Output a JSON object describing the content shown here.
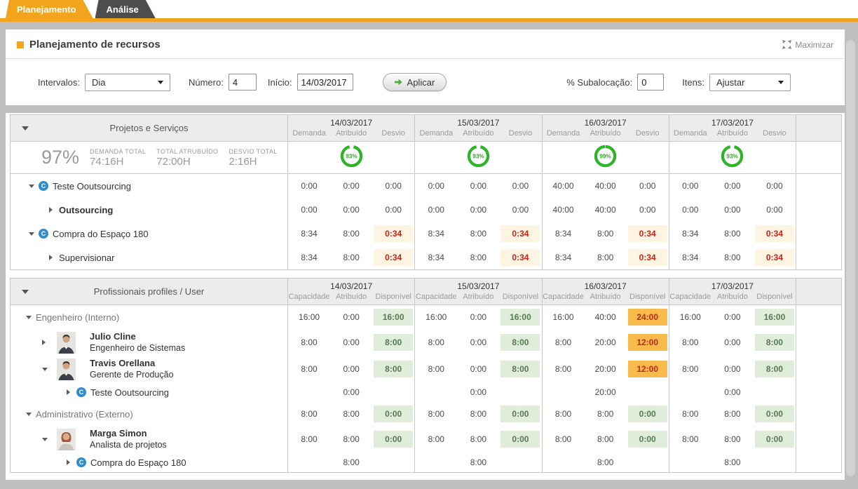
{
  "tabs": [
    {
      "label": "Planejamento",
      "active": true
    },
    {
      "label": "Análise",
      "active": false
    }
  ],
  "header": {
    "title": "Planejamento de recursos",
    "maximize_label": "Maximizar"
  },
  "toolbar": {
    "intervals_label": "Intervalos:",
    "intervals_value": "Dia",
    "number_label": "Número:",
    "number_value": "4",
    "start_label": "Início:",
    "start_value": "14/03/2017",
    "apply_label": "Aplicar",
    "suballoc_label": "% Subalocação:",
    "suballoc_value": "0",
    "items_label": "Itens:",
    "items_value": "Ajustar"
  },
  "dates": [
    "14/03/2017",
    "15/03/2017",
    "16/03/2017",
    "17/03/2017"
  ],
  "projects_table": {
    "title": "Projetos e Serviços",
    "subcolumns": [
      "Demanda",
      "Atribuído",
      "Desvio"
    ],
    "summary": {
      "percent": "97%",
      "items": [
        {
          "label": "DEMANDA TOTAL",
          "value": "74:16H"
        },
        {
          "label": "TOTAL ATRUBUÍDO",
          "value": "72:00H"
        },
        {
          "label": "DESVIO TOTAL",
          "value": "2:16H"
        }
      ],
      "ring_percents": [
        93,
        93,
        99,
        93
      ]
    },
    "rows": [
      {
        "kind": "project",
        "name": "Teste Ooutsourcing",
        "expanded": true,
        "icon": "project-c",
        "cells": [
          [
            "0:00",
            "0:00",
            "0:00"
          ],
          [
            "0:00",
            "0:00",
            "0:00"
          ],
          [
            "40:00",
            "40:00",
            "0:00"
          ],
          [
            "0:00",
            "0:00",
            "0:00"
          ]
        ]
      },
      {
        "kind": "task",
        "name": "Outsourcing",
        "bold": true,
        "expanded": false,
        "cells": [
          [
            "0:00",
            "0:00",
            "0:00"
          ],
          [
            "0:00",
            "0:00",
            "0:00"
          ],
          [
            "40:00",
            "40:00",
            "0:00"
          ],
          [
            "0:00",
            "0:00",
            "0:00"
          ]
        ]
      },
      {
        "kind": "project",
        "name": "Compra do Espaço 180",
        "expanded": true,
        "icon": "project-c",
        "cells": [
          [
            "8:34",
            "8:00",
            {
              "v": "0:34",
              "hl": "dev"
            }
          ],
          [
            "8:34",
            "8:00",
            {
              "v": "0:34",
              "hl": "dev"
            }
          ],
          [
            "8:34",
            "8:00",
            {
              "v": "0:34",
              "hl": "dev"
            }
          ],
          [
            "8:34",
            "8:00",
            {
              "v": "0:34",
              "hl": "dev"
            }
          ]
        ]
      },
      {
        "kind": "task",
        "name": "Supervisionar",
        "bold": false,
        "expanded": false,
        "cells": [
          [
            "8:34",
            "8:00",
            {
              "v": "0:34",
              "hl": "dev"
            }
          ],
          [
            "8:34",
            "8:00",
            {
              "v": "0:34",
              "hl": "dev"
            }
          ],
          [
            "8:34",
            "8:00",
            {
              "v": "0:34",
              "hl": "dev"
            }
          ],
          [
            "8:34",
            "8:00",
            {
              "v": "0:34",
              "hl": "dev"
            }
          ]
        ]
      }
    ]
  },
  "professionals_table": {
    "title": "Profissionais profiles / User",
    "subcolumns": [
      "Capacidade",
      "Atribuído",
      "Disponível"
    ],
    "rows": [
      {
        "kind": "group",
        "name": "Engenheiro (Interno)",
        "expanded": true,
        "cells": [
          [
            "16:00",
            "0:00",
            {
              "v": "16:00",
              "hl": "ok"
            }
          ],
          [
            "16:00",
            "0:00",
            {
              "v": "16:00",
              "hl": "ok"
            }
          ],
          [
            "16:00",
            "40:00",
            {
              "v": "24:00",
              "hl": "over"
            }
          ],
          [
            "16:00",
            "0:00",
            {
              "v": "16:00",
              "hl": "ok"
            }
          ]
        ]
      },
      {
        "kind": "person",
        "name": "Julio Cline",
        "subtitle": "Engenheiro de Sistemas",
        "expanded": false,
        "avatar": "male",
        "cells": [
          [
            "8:00",
            "0:00",
            {
              "v": "8:00",
              "hl": "ok"
            }
          ],
          [
            "8:00",
            "0:00",
            {
              "v": "8:00",
              "hl": "ok"
            }
          ],
          [
            "8:00",
            "20:00",
            {
              "v": "12:00",
              "hl": "over"
            }
          ],
          [
            "8:00",
            "0:00",
            {
              "v": "8:00",
              "hl": "ok"
            }
          ]
        ]
      },
      {
        "kind": "person",
        "name": "Travis Orellana",
        "subtitle": "Gerente de Produção",
        "expanded": true,
        "avatar": "male",
        "cells": [
          [
            "8:00",
            "0:00",
            {
              "v": "8:00",
              "hl": "ok"
            }
          ],
          [
            "8:00",
            "0:00",
            {
              "v": "8:00",
              "hl": "ok"
            }
          ],
          [
            "8:00",
            "20:00",
            {
              "v": "12:00",
              "hl": "over"
            }
          ],
          [
            "8:00",
            "0:00",
            {
              "v": "8:00",
              "hl": "ok"
            }
          ]
        ]
      },
      {
        "kind": "assignment",
        "name": "Teste Ooutsourcing",
        "expanded": false,
        "icon": "project-c",
        "cells": [
          [
            null,
            "0:00",
            null
          ],
          [
            null,
            "0:00",
            null
          ],
          [
            null,
            "20:00",
            null
          ],
          [
            null,
            "0:00",
            null
          ]
        ]
      },
      {
        "kind": "group",
        "name": "Administrativo (Externo)",
        "expanded": true,
        "cells": [
          [
            "8:00",
            "8:00",
            {
              "v": "0:00",
              "hl": "ok"
            }
          ],
          [
            "8:00",
            "8:00",
            {
              "v": "0:00",
              "hl": "ok"
            }
          ],
          [
            "8:00",
            "8:00",
            {
              "v": "0:00",
              "hl": "ok"
            }
          ],
          [
            "8:00",
            "8:00",
            {
              "v": "0:00",
              "hl": "ok"
            }
          ]
        ]
      },
      {
        "kind": "person",
        "name": "Marga Simon",
        "subtitle": "Analista de projetos",
        "expanded": true,
        "avatar": "female",
        "cells": [
          [
            "8:00",
            "8:00",
            {
              "v": "0:00",
              "hl": "ok"
            }
          ],
          [
            "8:00",
            "8:00",
            {
              "v": "0:00",
              "hl": "ok"
            }
          ],
          [
            "8:00",
            "8:00",
            {
              "v": "0:00",
              "hl": "ok"
            }
          ],
          [
            "8:00",
            "8:00",
            {
              "v": "0:00",
              "hl": "ok"
            }
          ]
        ]
      },
      {
        "kind": "assignment",
        "name": "Compra do Espaço 180",
        "expanded": false,
        "icon": "project-c",
        "cells": [
          [
            null,
            "8:00",
            null
          ],
          [
            null,
            "8:00",
            null
          ],
          [
            null,
            "8:00",
            null
          ],
          [
            null,
            "8:00",
            null
          ]
        ]
      }
    ]
  },
  "colors": {
    "accent_orange": "#f2a51c",
    "tab_inactive": "#4d4d4d",
    "ring_green": "#2fb328",
    "ok_bg": "#e0eddb",
    "ok_text": "#56794f",
    "over_bg": "#f8ba4b",
    "over_text": "#b8291e",
    "deviation_bg": "#fdf4e1",
    "deviation_text": "#c92318"
  }
}
